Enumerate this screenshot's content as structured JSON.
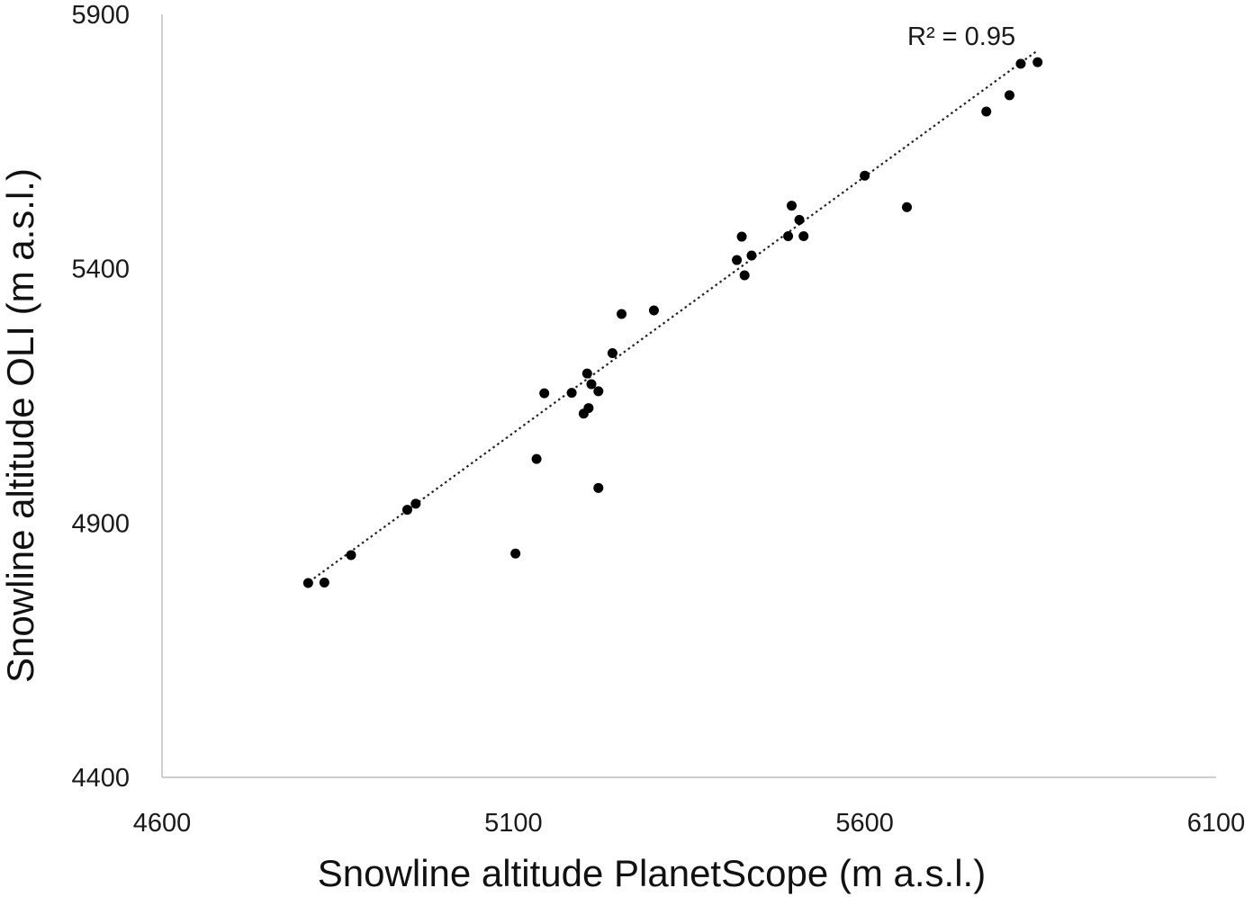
{
  "chart_data": {
    "type": "scatter",
    "title": "",
    "xlabel": "Snowline altitude PlanetScope (m a.s.l.)",
    "ylabel": "Snowline altitude OLI (m a.s.l.)",
    "xlim": [
      4600,
      6100
    ],
    "ylim": [
      4400,
      5900
    ],
    "xticks": [
      4600,
      5100,
      5600,
      6100
    ],
    "yticks": [
      4400,
      4900,
      5400,
      5900
    ],
    "xtick_labels": [
      "4600",
      "5100",
      "5600",
      "6100"
    ],
    "ytick_labels": [
      "4400",
      "4900",
      "5400",
      "5900"
    ],
    "grid": false,
    "legend": "none",
    "annotation": "R² = 0.95",
    "trendline": {
      "style": "dotted",
      "x": [
        4810,
        5845
      ],
      "y": [
        4785,
        5828
      ]
    },
    "point_color": "#000000",
    "points": [
      {
        "x": 4808,
        "y": 4782
      },
      {
        "x": 4831,
        "y": 4783
      },
      {
        "x": 4869,
        "y": 4837
      },
      {
        "x": 4949,
        "y": 4926
      },
      {
        "x": 4961,
        "y": 4938
      },
      {
        "x": 5103,
        "y": 4840
      },
      {
        "x": 5133,
        "y": 5026
      },
      {
        "x": 5144,
        "y": 5155
      },
      {
        "x": 5183,
        "y": 5156
      },
      {
        "x": 5200,
        "y": 5115
      },
      {
        "x": 5207,
        "y": 5126
      },
      {
        "x": 5205,
        "y": 5194
      },
      {
        "x": 5211,
        "y": 5173
      },
      {
        "x": 5221,
        "y": 5159
      },
      {
        "x": 5221,
        "y": 4969
      },
      {
        "x": 5241,
        "y": 5234
      },
      {
        "x": 5254,
        "y": 5311
      },
      {
        "x": 5300,
        "y": 5318
      },
      {
        "x": 5418,
        "y": 5417
      },
      {
        "x": 5425,
        "y": 5463
      },
      {
        "x": 5429,
        "y": 5387
      },
      {
        "x": 5439,
        "y": 5426
      },
      {
        "x": 5491,
        "y": 5464
      },
      {
        "x": 5496,
        "y": 5524
      },
      {
        "x": 5507,
        "y": 5496
      },
      {
        "x": 5513,
        "y": 5464
      },
      {
        "x": 5600,
        "y": 5583
      },
      {
        "x": 5660,
        "y": 5521
      },
      {
        "x": 5773,
        "y": 5709
      },
      {
        "x": 5806,
        "y": 5741
      },
      {
        "x": 5822,
        "y": 5803
      },
      {
        "x": 5846,
        "y": 5806
      }
    ]
  }
}
